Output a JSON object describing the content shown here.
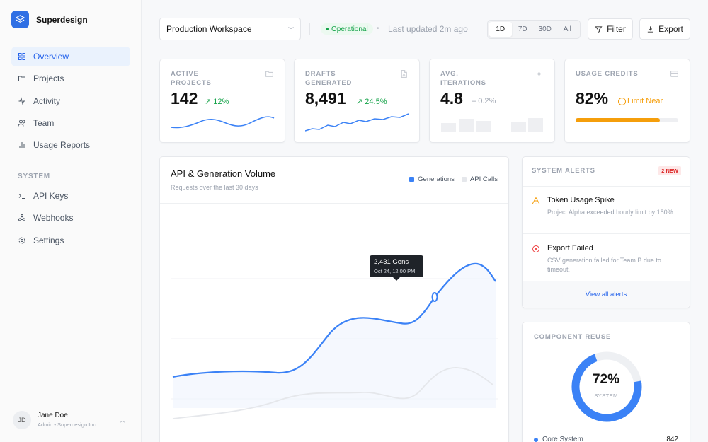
{
  "app": {
    "name": "Superdesign"
  },
  "sidebar": {
    "items": [
      {
        "label": "Overview",
        "icon": "grid-icon",
        "active": true
      },
      {
        "label": "Projects",
        "icon": "folder-icon"
      },
      {
        "label": "Activity",
        "icon": "activity-icon"
      },
      {
        "label": "Team",
        "icon": "users-icon"
      },
      {
        "label": "Usage Reports",
        "icon": "bar-chart-icon"
      }
    ],
    "section_label": "SYSTEM",
    "system_items": [
      {
        "label": "API Keys",
        "icon": "terminal-icon"
      },
      {
        "label": "Webhooks",
        "icon": "webhook-icon"
      },
      {
        "label": "Settings",
        "icon": "gear-icon"
      }
    ]
  },
  "user": {
    "initials": "JD",
    "name": "Jane Doe",
    "role": "Admin • Superdesign Inc."
  },
  "toolbar": {
    "workspace": "Production Workspace",
    "status": "Operational",
    "separator": "•",
    "updated": "Last updated 2m ago",
    "ranges": [
      "1D",
      "7D",
      "30D",
      "All"
    ],
    "active_range": "1D",
    "filter_label": "Filter",
    "export_label": "Export"
  },
  "kpis": [
    {
      "label": "ACTIVE PROJECTS",
      "value": "142",
      "delta": "12%",
      "delta_arrow": "↗",
      "trend": "up",
      "icon": "folder-icon"
    },
    {
      "label": "DRAFTS GENERATED",
      "value": "8,491",
      "delta": "24.5%",
      "delta_arrow": "↗",
      "trend": "up",
      "icon": "document-icon"
    },
    {
      "label": "AVG. ITERATIONS",
      "value": "4.8",
      "delta": "0.2%",
      "delta_arrow": "–",
      "trend": "flat",
      "icon": "commit-icon"
    },
    {
      "label": "USAGE CREDITS",
      "value": "82%",
      "delta": "Limit Near",
      "delta_arrow": "!",
      "trend": "warn",
      "icon": "credit-card-icon",
      "progress": 0.82
    }
  ],
  "volume_chart": {
    "title": "API & Generation Volume",
    "subtitle": "Requests over the last 30 days",
    "legend": [
      {
        "name": "Generations",
        "color": "#3b82f6"
      },
      {
        "name": "API Calls",
        "color": "#e5e7eb"
      }
    ],
    "tooltip": {
      "value": "2,431 Gens",
      "date": "Oct 24, 12:00 PM"
    }
  },
  "alerts": {
    "title": "SYSTEM ALERTS",
    "badge": "2 NEW",
    "items": [
      {
        "title": "Token Usage Spike",
        "desc": "Project Alpha exceeded hourly limit by 150%.",
        "icon": "warning-icon",
        "color": "#f59e0b"
      },
      {
        "title": "Export Failed",
        "desc": "CSV generation failed for Team B due to timeout.",
        "icon": "error-icon",
        "color": "#ef4444"
      }
    ],
    "view_all": "View all alerts"
  },
  "reuse": {
    "title": "COMPONENT REUSE",
    "value": "72%",
    "fraction": 0.72,
    "label": "SYSTEM",
    "rows": [
      {
        "name": "Core System",
        "count": "842"
      }
    ]
  },
  "colors": {
    "accent": "#3b82f6",
    "success": "#16a34a",
    "warning": "#f59e0b",
    "danger": "#ef4444"
  }
}
